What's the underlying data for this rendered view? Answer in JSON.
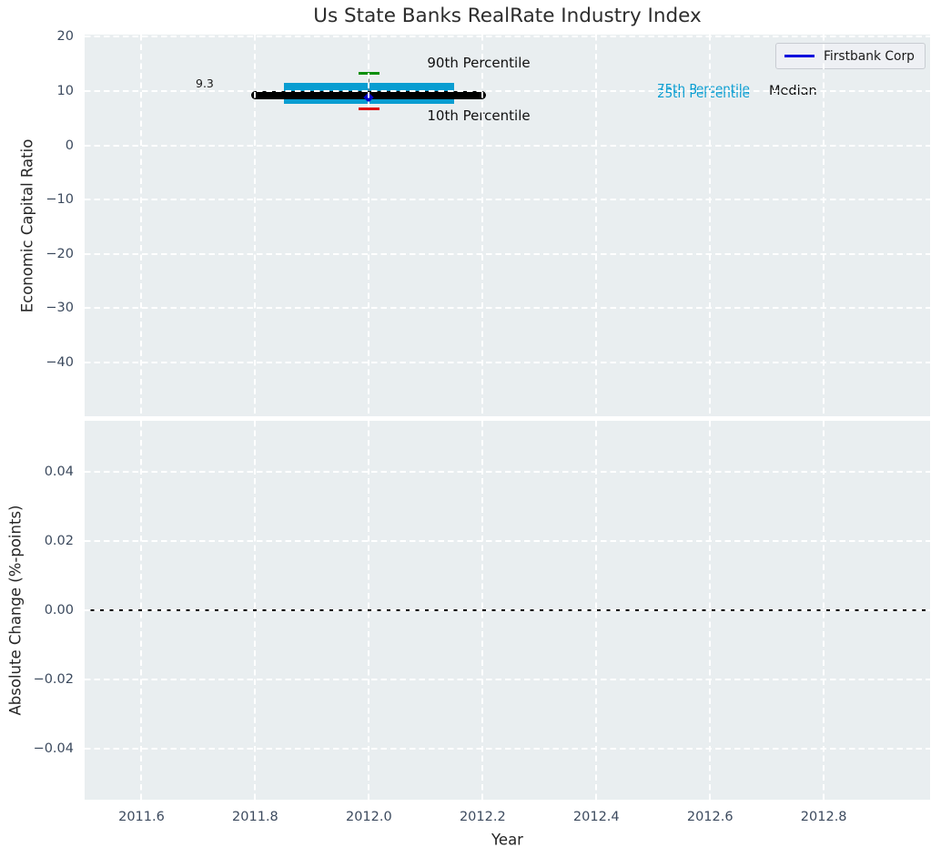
{
  "figure": {
    "title": "Us State Banks RealRate Industry Index"
  },
  "legend": {
    "label": "Firstbank Corp",
    "line_color": "#0000dd"
  },
  "chart_data": [
    {
      "type": "box",
      "title": "Us State Banks RealRate Industry Index",
      "xlabel": "",
      "ylabel": "Economic Capital Ratio",
      "xlim": [
        2011.5,
        2012.987
      ],
      "ylim": [
        -49.9,
        20.4
      ],
      "xticks": {
        "values": [
          2011.6,
          2011.8,
          2012.0,
          2012.2,
          2012.4,
          2012.6,
          2012.8
        ],
        "labels": [
          "2011.6",
          "2011.8",
          "2012.0",
          "2012.2",
          "2012.4",
          "2012.6",
          "2012.8"
        ]
      },
      "yticks": {
        "values": [
          20,
          10,
          0,
          -10,
          -20,
          -30,
          -40
        ],
        "labels": [
          "20",
          "10",
          "0",
          "−10",
          "−20",
          "−30",
          "−40"
        ]
      },
      "grid": {
        "visible": true,
        "style": "dashed",
        "color": "#ffffff"
      },
      "background": "#e9eef0",
      "box_plot": {
        "x": 2012,
        "median": 9.3,
        "p25": 7.6,
        "p75": 11.5,
        "p10": 6.7,
        "p90": 13.2,
        "box_x_range": [
          2011.85,
          2012.15
        ],
        "median_x_range": [
          2011.8,
          2012.2
        ],
        "colors": {
          "box": "#099dd1",
          "median": "#000000",
          "p90_cap": "#0a8f0a",
          "p10_cap": "#e01212",
          "whisker": "#7a7a7a"
        }
      },
      "company_point": {
        "name": "Firstbank Corp",
        "x": 2012,
        "value": 9.3,
        "color": "#0000cc"
      },
      "annotations": {
        "p90": "90th Percentile",
        "p10": "10th Percentile",
        "p75": "75th Percentile",
        "p25": "25th Percentile",
        "median": "Median",
        "company_value": "9.3"
      },
      "legend": {
        "position": "upper right",
        "entries": [
          {
            "label": "Firstbank Corp",
            "color": "#0000dd"
          }
        ]
      }
    },
    {
      "type": "line",
      "xlabel": "Year",
      "ylabel": "Absolute Change (%-points)",
      "xlim": [
        2011.5,
        2012.987
      ],
      "ylim": [
        -0.0547,
        0.0547
      ],
      "yticks": {
        "values": [
          0.04,
          0.02,
          0,
          -0.02,
          -0.04
        ],
        "labels": [
          "0.04",
          "0.02",
          "0.00",
          "−0.02",
          "−0.04"
        ]
      },
      "zero_line": {
        "value": 0,
        "color": "#000000"
      },
      "series": []
    }
  ]
}
